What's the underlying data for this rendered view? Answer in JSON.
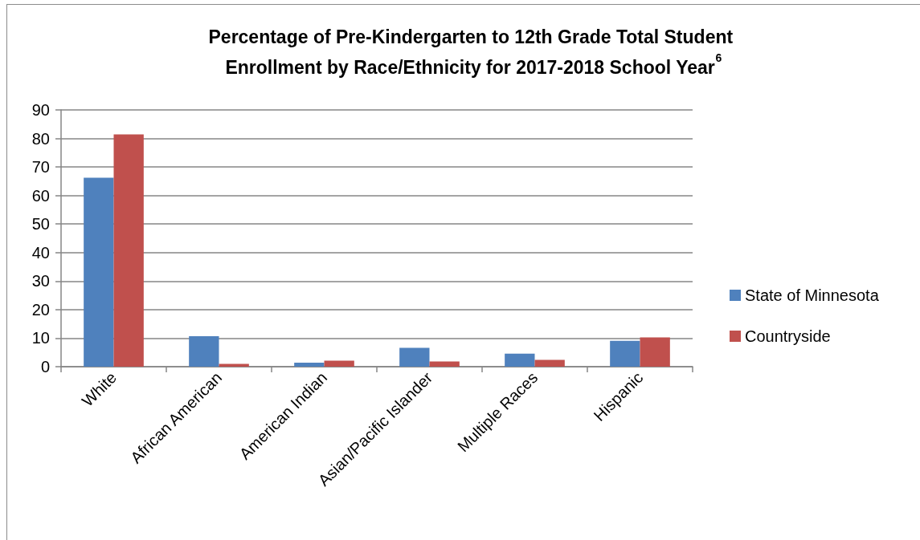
{
  "chart_data": {
    "type": "bar",
    "title": "Percentage of Pre-Kindergarten to 12th Grade Total Student Enrollment by Race/Ethnicity for 2017-2018 School Year$^{6}$",
    "categories": [
      "White",
      "African American",
      "American Indian",
      "Asian/Pacific Islander",
      "Multiple Races",
      "Hispanic"
    ],
    "series": [
      {
        "name": "State of Minnesota",
        "color": "#4f81bd",
        "values": [
          66.2,
          10.7,
          1.4,
          6.6,
          4.6,
          9.1
        ]
      },
      {
        "name": "Countryside",
        "color": "#c0504d",
        "values": [
          81.4,
          1.0,
          2.1,
          1.8,
          2.4,
          10.3
        ]
      }
    ],
    "ylim": [
      0,
      90
    ],
    "yticks": [
      0,
      10,
      20,
      30,
      40,
      50,
      60,
      70,
      80,
      90
    ],
    "grid": "y",
    "legend": "right"
  }
}
